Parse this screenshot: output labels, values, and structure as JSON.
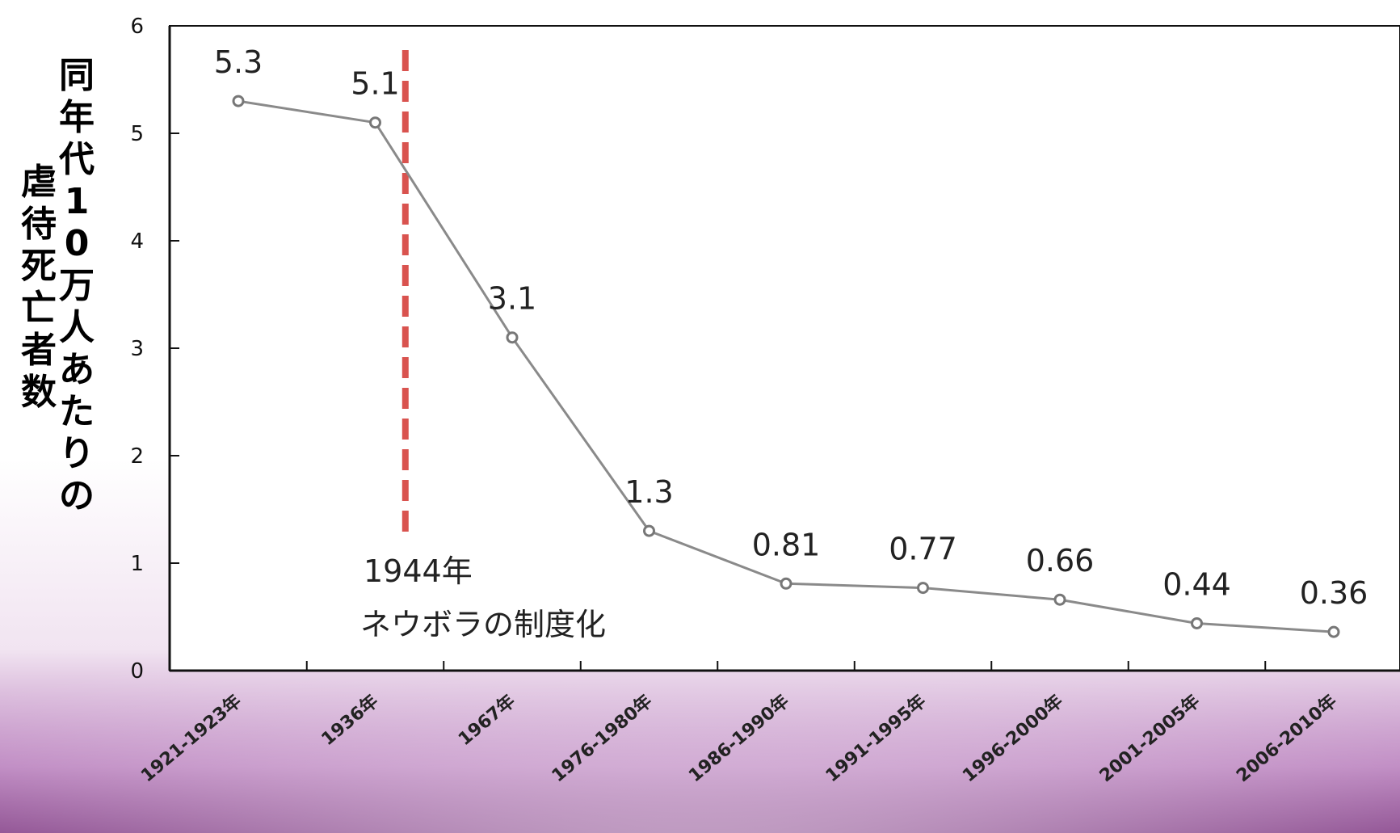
{
  "chart_data": {
    "type": "line",
    "categories": [
      "1921-1923年",
      "1936年",
      "1967年",
      "1976-1980年",
      "1986-1990年",
      "1991-1995年",
      "1996-2000年",
      "2001-2005年",
      "2006-2010年"
    ],
    "series": [
      {
        "values": [
          5.3,
          5.1,
          3.1,
          1.3,
          0.81,
          0.77,
          0.66,
          0.44,
          0.36
        ]
      }
    ],
    "data_labels": [
      "5.3",
      "5.1",
      "3.1",
      "1.3",
      "0.81",
      "0.77",
      "0.66",
      "0.44",
      "0.36"
    ],
    "ylabel_col1": "同年代10万人あたりの",
    "ylabel_col2": "虐待死亡者数",
    "yticks": [
      "0",
      "1",
      "2",
      "3",
      "4",
      "5",
      "6"
    ],
    "ylim": [
      0,
      6
    ],
    "grid": false,
    "annotation": {
      "line1": "1944年",
      "line2": "ネウボラの制度化",
      "line_color": "#d9534f",
      "position_between": [
        "1936年",
        "1967年"
      ]
    },
    "colors": {
      "series_line": "#8a8a8a",
      "axis": "#111111",
      "background_bottom": "#7a2f7e"
    }
  }
}
